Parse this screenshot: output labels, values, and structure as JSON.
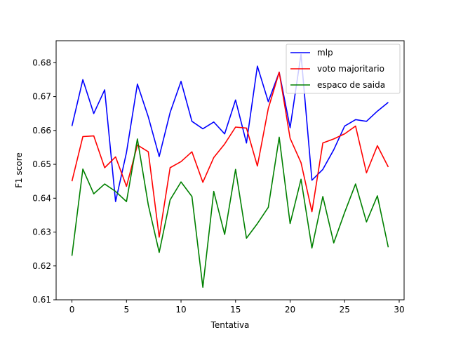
{
  "chart_data": {
    "type": "line",
    "xlabel": "Tentativa",
    "ylabel": "F1 score",
    "xlim": [
      -1.45,
      30.45
    ],
    "ylim": [
      0.61,
      0.6865
    ],
    "xticks": [
      0,
      5,
      10,
      15,
      20,
      25,
      30
    ],
    "yticks": [
      0.61,
      0.62,
      0.63,
      0.64,
      0.65,
      0.66,
      0.67,
      0.68
    ],
    "ytick_labels": [
      "0.61",
      "0.62",
      "0.63",
      "0.64",
      "0.65",
      "0.66",
      "0.67",
      "0.68"
    ],
    "grid": false,
    "legend_position": "top-right",
    "x": [
      0,
      1,
      2,
      3,
      4,
      5,
      6,
      7,
      8,
      9,
      10,
      11,
      12,
      13,
      14,
      15,
      16,
      17,
      18,
      19,
      20,
      21,
      22,
      23,
      24,
      25,
      26,
      27,
      28,
      29
    ],
    "series": [
      {
        "name": "mlp",
        "color": "#0000ff",
        "values": [
          0.6613,
          0.675,
          0.665,
          0.672,
          0.639,
          0.6535,
          0.6737,
          0.664,
          0.6523,
          0.6653,
          0.6745,
          0.6627,
          0.6605,
          0.6625,
          0.659,
          0.669,
          0.6563,
          0.679,
          0.6685,
          0.6772,
          0.6608,
          0.6825,
          0.6453,
          0.6485,
          0.6543,
          0.6613,
          0.6632,
          0.6627,
          0.6657,
          0.6683
        ]
      },
      {
        "name": "voto majoritario",
        "color": "#ff0000",
        "values": [
          0.645,
          0.6582,
          0.6584,
          0.649,
          0.6522,
          0.6435,
          0.6557,
          0.6537,
          0.6285,
          0.649,
          0.6508,
          0.6537,
          0.6447,
          0.652,
          0.656,
          0.661,
          0.6607,
          0.6495,
          0.6665,
          0.6772,
          0.6577,
          0.6505,
          0.636,
          0.6563,
          0.6575,
          0.659,
          0.6613,
          0.6475,
          0.6555,
          0.6492
        ]
      },
      {
        "name": "espaco de saida",
        "color": "#008000",
        "values": [
          0.623,
          0.6486,
          0.6413,
          0.6442,
          0.642,
          0.639,
          0.6575,
          0.638,
          0.624,
          0.6395,
          0.6448,
          0.6405,
          0.6137,
          0.642,
          0.6293,
          0.6485,
          0.6282,
          0.6325,
          0.6373,
          0.658,
          0.6325,
          0.6456,
          0.6253,
          0.6405,
          0.6268,
          0.6358,
          0.6442,
          0.633,
          0.6407,
          0.6255
        ]
      }
    ]
  }
}
